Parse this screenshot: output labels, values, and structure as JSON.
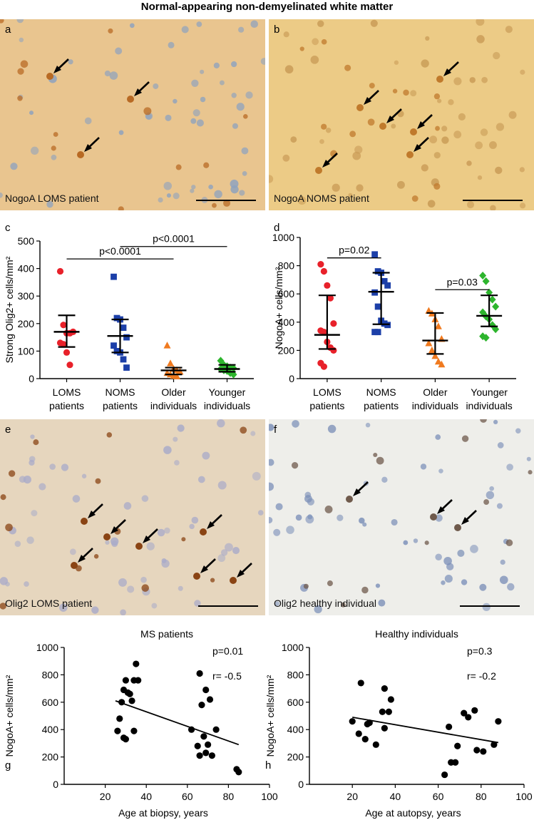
{
  "figure": {
    "title": "Normal-appearing non-demyelinated white matter",
    "panels": {
      "a": {
        "letter": "a",
        "caption": "NogoA LOMS patient",
        "stain": "NogoA",
        "background": "#e9c58f",
        "cell": "#b86a24",
        "nucleus": "#8da2bf"
      },
      "b": {
        "letter": "b",
        "caption": "NogoA NOMS patient",
        "stain": "NogoA",
        "background": "#eccb86",
        "cell": "#c07a2c",
        "nucleus": "#c89a55"
      },
      "e": {
        "letter": "e",
        "caption": "Olig2 LOMS patient",
        "stain": "Olig2",
        "background": "#e6d6be",
        "cell": "#8a4414",
        "nucleus": "#a9abc9"
      },
      "f": {
        "letter": "f",
        "caption": "Olig2 healthy individual",
        "stain": "Olig2",
        "background": "#eeeeea",
        "cell": "#6f5a4c",
        "nucleus": "#7b8fb8"
      }
    },
    "icons": [
      "arrow-icon"
    ]
  },
  "chart_data": [
    {
      "id": "c",
      "letter": "c",
      "type": "scatter",
      "ylabel": "Strong Olig2+ cells/mm²",
      "ylim": [
        0,
        500
      ],
      "yticks": [
        0,
        100,
        200,
        300,
        400,
        500
      ],
      "categories": [
        "LOMS patients",
        "NOMS patients",
        "Older individuals",
        "Younger individuals"
      ],
      "category_lines": [
        [
          "LOMS",
          "patients"
        ],
        [
          "NOMS",
          "patients"
        ],
        [
          "Older",
          "individuals"
        ],
        [
          "Younger",
          "individuals"
        ]
      ],
      "series": [
        {
          "category": "LOMS patients",
          "color": "#e8212a",
          "marker": "circle",
          "values": [
            390,
            195,
            165,
            165,
            170,
            130,
            125,
            95,
            50
          ],
          "median": 170,
          "iqr": [
            115,
            230
          ]
        },
        {
          "category": "NOMS patients",
          "color": "#1c3fa8",
          "marker": "square",
          "values": [
            370,
            220,
            215,
            185,
            150,
            120,
            100,
            95,
            70,
            40
          ],
          "median": 155,
          "iqr": [
            95,
            215
          ]
        },
        {
          "category": "Older individuals",
          "color": "#f07a1f",
          "marker": "triangle",
          "values": [
            120,
            55,
            35,
            30,
            25,
            20,
            15,
            10,
            8
          ],
          "median": 30,
          "iqr": [
            15,
            40
          ]
        },
        {
          "category": "Younger individuals",
          "color": "#2db52d",
          "marker": "diamond",
          "values": [
            65,
            50,
            45,
            40,
            38,
            35,
            30,
            28,
            20,
            15
          ],
          "median": 35,
          "iqr": [
            25,
            50
          ]
        }
      ],
      "comparisons": [
        {
          "label": "p<0.0001",
          "from": "LOMS patients",
          "to": "Older individuals",
          "y": 435
        },
        {
          "label": "p<0.0001",
          "from": "NOMS patients",
          "to": "Younger individuals",
          "y": 480
        }
      ]
    },
    {
      "id": "d",
      "letter": "d",
      "type": "scatter",
      "ylabel": "NogoA+ cells/mm²",
      "ylim": [
        0,
        1000
      ],
      "yticks": [
        0,
        200,
        400,
        600,
        800,
        1000
      ],
      "categories": [
        "LOMS patients",
        "NOMS patients",
        "Older individuals",
        "Younger individuals"
      ],
      "category_lines": [
        [
          "LOMS",
          "patients"
        ],
        [
          "NOMS",
          "patients"
        ],
        [
          "Older",
          "individuals"
        ],
        [
          "Younger",
          "individuals"
        ]
      ],
      "series": [
        {
          "category": "LOMS patients",
          "color": "#e8212a",
          "marker": "circle",
          "values": [
            810,
            760,
            660,
            570,
            390,
            340,
            330,
            260,
            220,
            200,
            110,
            85
          ],
          "median": 310,
          "iqr": [
            210,
            590
          ]
        },
        {
          "category": "NOMS patients",
          "color": "#1c3fa8",
          "marker": "square",
          "values": [
            880,
            760,
            750,
            690,
            660,
            610,
            510,
            410,
            390,
            380,
            330,
            330
          ],
          "median": 615,
          "iqr": [
            385,
            750
          ]
        },
        {
          "category": "Older individuals",
          "color": "#f07a1f",
          "marker": "triangle",
          "values": [
            480,
            460,
            420,
            370,
            280,
            250,
            200,
            160,
            120,
            100
          ],
          "median": 270,
          "iqr": [
            175,
            465
          ]
        },
        {
          "category": "Younger individuals",
          "color": "#2db52d",
          "marker": "diamond",
          "values": [
            730,
            690,
            610,
            560,
            510,
            470,
            440,
            420,
            380,
            350,
            300,
            290
          ],
          "median": 445,
          "iqr": [
            370,
            590
          ]
        }
      ],
      "comparisons": [
        {
          "label": "p=0.02",
          "from": "LOMS patients",
          "to": "NOMS patients",
          "y": 855
        },
        {
          "label": "p=0.03",
          "from": "Older individuals",
          "to": "Younger individuals",
          "y": 630
        }
      ]
    },
    {
      "id": "g",
      "letter": "g",
      "type": "scatter",
      "title": "MS patients",
      "xlabel": "Age at biopsy, years",
      "ylabel": "NogoA+ cells/mm²",
      "xlim": [
        0,
        100
      ],
      "ylim": [
        0,
        1000
      ],
      "xticks": [
        20,
        40,
        60,
        80,
        100
      ],
      "yticks": [
        0,
        200,
        400,
        600,
        800,
        1000
      ],
      "stats": [
        "p=0.01",
        "r= -0.5"
      ],
      "points": [
        [
          26,
          390
        ],
        [
          27,
          480
        ],
        [
          28,
          600
        ],
        [
          29,
          340
        ],
        [
          29,
          690
        ],
        [
          30,
          330
        ],
        [
          30,
          760
        ],
        [
          31,
          670
        ],
        [
          32,
          660
        ],
        [
          33,
          610
        ],
        [
          34,
          390
        ],
        [
          34,
          760
        ],
        [
          35,
          880
        ],
        [
          36,
          760
        ],
        [
          62,
          400
        ],
        [
          65,
          280
        ],
        [
          66,
          810
        ],
        [
          66,
          210
        ],
        [
          67,
          580
        ],
        [
          68,
          350
        ],
        [
          69,
          230
        ],
        [
          69,
          690
        ],
        [
          70,
          290
        ],
        [
          71,
          620
        ],
        [
          72,
          210
        ],
        [
          74,
          400
        ],
        [
          84,
          110
        ],
        [
          85,
          90
        ]
      ],
      "trendline": [
        [
          25,
          610
        ],
        [
          85,
          290
        ]
      ],
      "color": "#000000"
    },
    {
      "id": "h",
      "letter": "h",
      "type": "scatter",
      "title": "Healthy individuals",
      "xlabel": "Age at autopsy, years",
      "ylabel": "NogoA+ cells/mm²",
      "xlim": [
        0,
        100
      ],
      "ylim": [
        0,
        1000
      ],
      "xticks": [
        20,
        40,
        60,
        80,
        100
      ],
      "yticks": [
        0,
        200,
        400,
        600,
        800,
        1000
      ],
      "stats": [
        "p=0.3",
        "r= -0.2"
      ],
      "points": [
        [
          20,
          460
        ],
        [
          23,
          370
        ],
        [
          24,
          740
        ],
        [
          26,
          330
        ],
        [
          27,
          440
        ],
        [
          28,
          450
        ],
        [
          31,
          290
        ],
        [
          34,
          530
        ],
        [
          35,
          700
        ],
        [
          35,
          410
        ],
        [
          37,
          530
        ],
        [
          38,
          620
        ],
        [
          63,
          70
        ],
        [
          65,
          420
        ],
        [
          66,
          160
        ],
        [
          68,
          160
        ],
        [
          69,
          280
        ],
        [
          72,
          520
        ],
        [
          74,
          490
        ],
        [
          77,
          540
        ],
        [
          78,
          250
        ],
        [
          81,
          240
        ],
        [
          86,
          290
        ],
        [
          88,
          460
        ]
      ],
      "trendline": [
        [
          20,
          490
        ],
        [
          88,
          305
        ]
      ],
      "color": "#000000"
    }
  ]
}
